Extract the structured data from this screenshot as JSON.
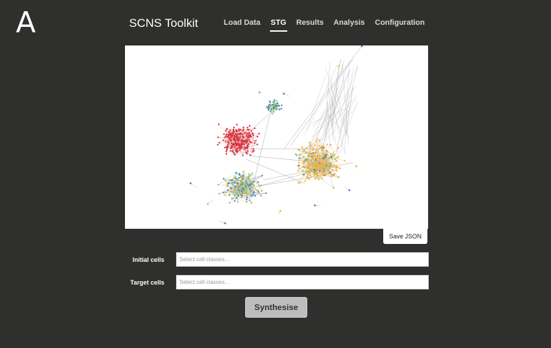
{
  "panel_label": "A",
  "header": {
    "brand": "SCNS Toolkit",
    "nav": [
      {
        "id": "load-data",
        "label": "Load Data",
        "active": false
      },
      {
        "id": "stg",
        "label": "STG",
        "active": true
      },
      {
        "id": "results",
        "label": "Results",
        "active": false
      },
      {
        "id": "analysis",
        "label": "Analysis",
        "active": false
      },
      {
        "id": "configuration",
        "label": "Configuration",
        "active": false
      }
    ]
  },
  "graph": {
    "colors": {
      "red": "#d9323c",
      "blue": "#3a87c8",
      "green": "#8cc152",
      "orange": "#f0b13f",
      "edge": "#a6a6a6",
      "edge_orange": "#e8b35a"
    }
  },
  "actions": {
    "save_json": "Save JSON",
    "synthesise": "Synthesise"
  },
  "form": {
    "initial": {
      "label": "Initial cells",
      "placeholder": "Select cell classes..."
    },
    "target": {
      "label": "Target cells",
      "placeholder": "Select cell classes..."
    }
  }
}
